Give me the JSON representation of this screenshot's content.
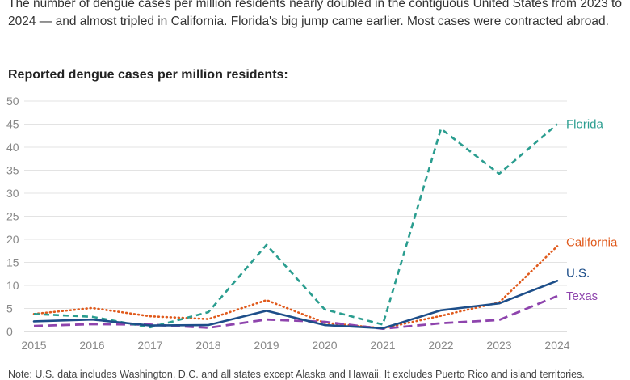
{
  "intro_text": "The number of dengue cases per million residents nearly doubled in the contiguous United States from 2023 to 2024 — and almost tripled in California. Florida's big jump came earlier. Most cases were contracted abroad.",
  "subtitle": "Reported dengue cases per million residents:",
  "note": "Note: U.S. data includes Washington, D.C. and all states except Alaska and Hawaii. It excludes Puerto Rico and island territories.",
  "chart_data": {
    "type": "line",
    "title": "Reported dengue cases per million residents:",
    "x": [
      2015,
      2016,
      2017,
      2018,
      2019,
      2020,
      2021,
      2022,
      2023,
      2024
    ],
    "ylim": [
      0,
      50
    ],
    "yticks": [
      0,
      5,
      10,
      15,
      20,
      25,
      30,
      35,
      40,
      45,
      50
    ],
    "grid": true,
    "legend": "direct labels at line ends",
    "series": [
      {
        "name": "Florida",
        "color": "#2a9d8f",
        "style": "dashed",
        "values": [
          3.8,
          3.2,
          0.9,
          4.2,
          18.8,
          4.8,
          1.5,
          44.0,
          34.2,
          45.0
        ]
      },
      {
        "name": "California",
        "color": "#e05a1c",
        "style": "dotted",
        "values": [
          3.8,
          5.1,
          3.3,
          2.7,
          6.8,
          1.9,
          0.7,
          3.4,
          6.3,
          18.5
        ]
      },
      {
        "name": "U.S.",
        "color": "#1d4e89",
        "style": "solid",
        "values": [
          2.2,
          2.6,
          1.3,
          1.4,
          4.5,
          1.4,
          0.7,
          4.6,
          6.1,
          11.0
        ]
      },
      {
        "name": "Texas",
        "color": "#8e44ad",
        "style": "longdash",
        "values": [
          1.2,
          1.6,
          1.5,
          0.8,
          2.6,
          2.1,
          0.6,
          1.8,
          2.5,
          7.7
        ]
      }
    ]
  }
}
